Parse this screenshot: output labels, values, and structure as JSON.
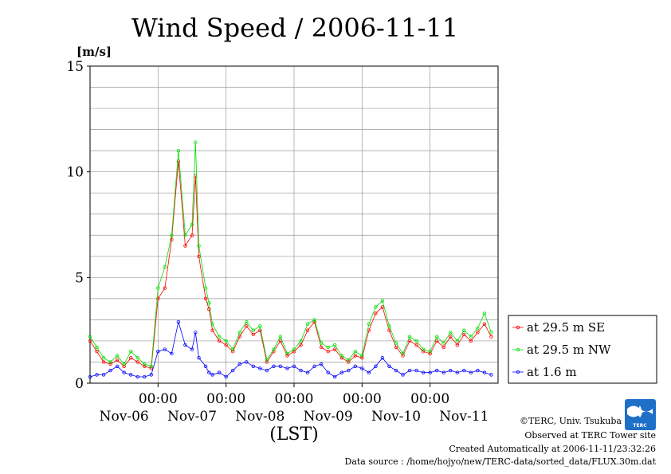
{
  "chart_data": {
    "type": "line",
    "title": "Wind Speed / 2006-11-11",
    "ylabel": "[m/s]",
    "xlabel": "(LST)",
    "ylim": [
      0,
      15
    ],
    "xlim_days": [
      -1,
      5
    ],
    "y_ticks": [
      0,
      5,
      10,
      15
    ],
    "x_ticks": [
      {
        "day": 0,
        "time": "00:00",
        "date": "Nov-07"
      },
      {
        "day": 1,
        "time": "00:00",
        "date": "Nov-08"
      },
      {
        "day": 2,
        "time": "00:00",
        "date": "Nov-09"
      },
      {
        "day": 3,
        "time": "00:00",
        "date": "Nov-10"
      },
      {
        "day": 4,
        "time": "00:00",
        "date": "Nov-11"
      }
    ],
    "first_date": "Nov-06",
    "grid": true,
    "legend_position": "outside-right",
    "series": [
      {
        "name": "at 29.5 m SE",
        "color": "#ff0000",
        "x": [
          -1.0,
          -0.9,
          -0.8,
          -0.7,
          -0.6,
          -0.5,
          -0.4,
          -0.3,
          -0.2,
          -0.1,
          0.0,
          0.1,
          0.2,
          0.3,
          0.4,
          0.5,
          0.55,
          0.6,
          0.7,
          0.75,
          0.8,
          0.9,
          1.0,
          1.1,
          1.2,
          1.3,
          1.4,
          1.5,
          1.6,
          1.7,
          1.8,
          1.9,
          2.0,
          2.1,
          2.2,
          2.3,
          2.4,
          2.5,
          2.6,
          2.7,
          2.8,
          2.9,
          3.0,
          3.1,
          3.2,
          3.3,
          3.4,
          3.5,
          3.6,
          3.7,
          3.8,
          3.9,
          4.0,
          4.1,
          4.2,
          4.3,
          4.4,
          4.5,
          4.6,
          4.7,
          4.8,
          4.9
        ],
        "values": [
          2.0,
          1.5,
          1.0,
          0.9,
          1.1,
          0.8,
          1.2,
          1.0,
          0.8,
          0.7,
          4.0,
          4.5,
          6.8,
          10.5,
          6.5,
          7.0,
          9.8,
          6.0,
          4.0,
          3.5,
          2.5,
          2.0,
          1.8,
          1.5,
          2.2,
          2.7,
          2.3,
          2.5,
          1.0,
          1.5,
          2.0,
          1.3,
          1.5,
          1.8,
          2.5,
          2.9,
          1.7,
          1.5,
          1.6,
          1.2,
          1.0,
          1.3,
          1.2,
          2.5,
          3.3,
          3.6,
          2.5,
          1.7,
          1.3,
          2.0,
          1.8,
          1.5,
          1.4,
          2.0,
          1.7,
          2.2,
          1.8,
          2.3,
          2.0,
          2.4,
          2.8,
          2.2
        ]
      },
      {
        "name": "at 29.5 m NW",
        "color": "#00dd00",
        "x": [
          -1.0,
          -0.9,
          -0.8,
          -0.7,
          -0.6,
          -0.5,
          -0.4,
          -0.3,
          -0.2,
          -0.1,
          0.0,
          0.1,
          0.2,
          0.3,
          0.4,
          0.5,
          0.55,
          0.6,
          0.7,
          0.75,
          0.8,
          0.9,
          1.0,
          1.1,
          1.2,
          1.3,
          1.4,
          1.5,
          1.6,
          1.7,
          1.8,
          1.9,
          2.0,
          2.1,
          2.2,
          2.3,
          2.4,
          2.5,
          2.6,
          2.7,
          2.8,
          2.9,
          3.0,
          3.1,
          3.2,
          3.3,
          3.4,
          3.5,
          3.6,
          3.7,
          3.8,
          3.9,
          4.0,
          4.1,
          4.2,
          4.3,
          4.4,
          4.5,
          4.6,
          4.7,
          4.8,
          4.9
        ],
        "values": [
          2.2,
          1.7,
          1.2,
          1.0,
          1.3,
          0.9,
          1.5,
          1.2,
          0.9,
          0.8,
          4.5,
          5.5,
          7.0,
          11.0,
          7.0,
          7.5,
          11.4,
          6.5,
          4.5,
          3.8,
          2.8,
          2.2,
          2.0,
          1.6,
          2.4,
          2.9,
          2.5,
          2.7,
          1.1,
          1.6,
          2.2,
          1.4,
          1.6,
          2.0,
          2.8,
          3.0,
          1.9,
          1.7,
          1.8,
          1.3,
          1.1,
          1.5,
          1.3,
          2.8,
          3.6,
          3.9,
          2.7,
          1.9,
          1.4,
          2.2,
          2.0,
          1.6,
          1.5,
          2.2,
          1.9,
          2.4,
          2.0,
          2.5,
          2.2,
          2.6,
          3.3,
          2.4
        ]
      },
      {
        "name": "at 1.6 m",
        "color": "#0000ff",
        "x": [
          -1.0,
          -0.9,
          -0.8,
          -0.7,
          -0.6,
          -0.5,
          -0.4,
          -0.3,
          -0.2,
          -0.1,
          0.0,
          0.1,
          0.2,
          0.3,
          0.4,
          0.5,
          0.55,
          0.6,
          0.7,
          0.75,
          0.8,
          0.9,
          1.0,
          1.1,
          1.2,
          1.3,
          1.4,
          1.5,
          1.6,
          1.7,
          1.8,
          1.9,
          2.0,
          2.1,
          2.2,
          2.3,
          2.4,
          2.5,
          2.6,
          2.7,
          2.8,
          2.9,
          3.0,
          3.1,
          3.2,
          3.3,
          3.4,
          3.5,
          3.6,
          3.7,
          3.8,
          3.9,
          4.0,
          4.1,
          4.2,
          4.3,
          4.4,
          4.5,
          4.6,
          4.7,
          4.8,
          4.9
        ],
        "values": [
          0.3,
          0.4,
          0.4,
          0.6,
          0.8,
          0.5,
          0.4,
          0.3,
          0.3,
          0.4,
          1.5,
          1.6,
          1.4,
          2.9,
          1.8,
          1.6,
          2.4,
          1.2,
          0.8,
          0.5,
          0.4,
          0.5,
          0.3,
          0.6,
          0.9,
          1.0,
          0.8,
          0.7,
          0.6,
          0.8,
          0.8,
          0.7,
          0.8,
          0.6,
          0.5,
          0.8,
          0.9,
          0.5,
          0.3,
          0.5,
          0.6,
          0.8,
          0.7,
          0.5,
          0.8,
          1.2,
          0.8,
          0.6,
          0.4,
          0.6,
          0.6,
          0.5,
          0.5,
          0.6,
          0.5,
          0.6,
          0.5,
          0.6,
          0.5,
          0.6,
          0.5,
          0.4
        ]
      }
    ]
  },
  "footer": {
    "copyright": "©TERC, Univ. Tsukuba",
    "observed": "Observed at TERC Tower site",
    "created": "Created Automatically at 2006-11-11/23:32:26",
    "datasource": "Data source : /home/hojyo/new/TERC-data/sorted_data/FLUX.30m.dat"
  },
  "logo": {
    "text": "TERC",
    "color": "#1e6fc8"
  }
}
